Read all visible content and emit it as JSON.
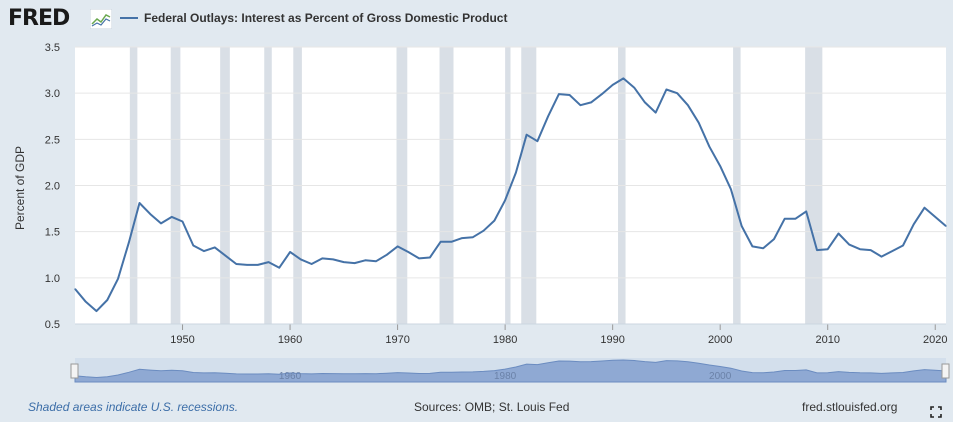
{
  "header": {
    "logo_text": "FRED",
    "series_title": "Federal Outlays: Interest as Percent of Gross Domestic Product"
  },
  "footer": {
    "recession_note": "Shaded areas indicate U.S. recessions.",
    "sources": "Sources: OMB; St. Louis Fed",
    "site": "fred.stlouisfed.org"
  },
  "colors": {
    "line": "#4572a7",
    "recession": "#d9dfe6",
    "background": "#e1e9f0",
    "plot": "#ffffff",
    "navigator": "#a7b9d6"
  },
  "chart_data": {
    "type": "line",
    "title": "Federal Outlays: Interest as Percent of Gross Domestic Product",
    "ylabel": "Percent of GDP",
    "xlabel": "",
    "xlim": [
      1940,
      2021
    ],
    "ylim": [
      0.5,
      3.5
    ],
    "x_ticks": [
      1950,
      1960,
      1970,
      1980,
      1990,
      2000,
      2010,
      2020
    ],
    "y_ticks": [
      0.5,
      1.0,
      1.5,
      2.0,
      2.5,
      3.0,
      3.5
    ],
    "y_tick_labels": [
      "0.5",
      "1.0",
      "1.5",
      "2.0",
      "2.5",
      "3.0",
      "3.5"
    ],
    "grid": "horizontal",
    "navigator_ticks": [
      "1960",
      "1980",
      "2000"
    ],
    "recessions": [
      [
        1945.1,
        1945.8
      ],
      [
        1948.9,
        1949.8
      ],
      [
        1953.5,
        1954.4
      ],
      [
        1957.6,
        1958.3
      ],
      [
        1960.3,
        1961.1
      ],
      [
        1969.9,
        1970.9
      ],
      [
        1973.9,
        1975.2
      ],
      [
        1980.0,
        1980.5
      ],
      [
        1981.5,
        1982.9
      ],
      [
        1990.5,
        1991.2
      ],
      [
        2001.2,
        2001.9
      ],
      [
        2007.9,
        2009.5
      ]
    ],
    "series": [
      {
        "name": "Federal Outlays: Interest as Percent of Gross Domestic Product",
        "x": [
          1940,
          1941,
          1942,
          1943,
          1944,
          1945,
          1946,
          1947,
          1948,
          1949,
          1950,
          1951,
          1952,
          1953,
          1954,
          1955,
          1956,
          1957,
          1958,
          1959,
          1960,
          1961,
          1962,
          1963,
          1964,
          1965,
          1966,
          1967,
          1968,
          1969,
          1970,
          1971,
          1972,
          1973,
          1974,
          1975,
          1976,
          1977,
          1978,
          1979,
          1980,
          1981,
          1982,
          1983,
          1984,
          1985,
          1986,
          1987,
          1988,
          1989,
          1990,
          1991,
          1992,
          1993,
          1994,
          1995,
          1996,
          1997,
          1998,
          1999,
          2000,
          2001,
          2002,
          2003,
          2004,
          2005,
          2006,
          2007,
          2008,
          2009,
          2010,
          2011,
          2012,
          2013,
          2014,
          2015,
          2016,
          2017,
          2018,
          2019,
          2020,
          2021
        ],
        "values": [
          0.88,
          0.74,
          0.64,
          0.76,
          0.99,
          1.38,
          1.81,
          1.69,
          1.59,
          1.66,
          1.61,
          1.35,
          1.29,
          1.33,
          1.24,
          1.15,
          1.14,
          1.14,
          1.17,
          1.11,
          1.28,
          1.2,
          1.15,
          1.21,
          1.2,
          1.17,
          1.16,
          1.19,
          1.18,
          1.25,
          1.34,
          1.28,
          1.21,
          1.22,
          1.39,
          1.39,
          1.43,
          1.44,
          1.51,
          1.62,
          1.84,
          2.14,
          2.55,
          2.48,
          2.75,
          2.99,
          2.98,
          2.87,
          2.9,
          2.99,
          3.09,
          3.16,
          3.06,
          2.9,
          2.79,
          3.04,
          3.0,
          2.87,
          2.68,
          2.42,
          2.21,
          1.96,
          1.56,
          1.34,
          1.32,
          1.42,
          1.64,
          1.64,
          1.72,
          1.3,
          1.31,
          1.48,
          1.36,
          1.31,
          1.3,
          1.23,
          1.29,
          1.35,
          1.58,
          1.76,
          1.66,
          1.56
        ]
      }
    ]
  }
}
